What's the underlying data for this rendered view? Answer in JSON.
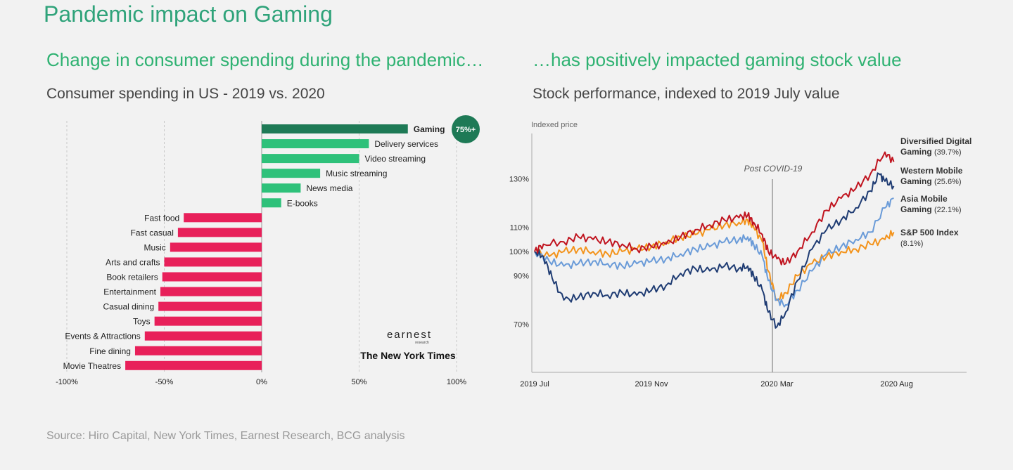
{
  "page": {
    "title": "Pandemic impact on Gaming",
    "left_heading": "Change in consumer spending during the pandemic…",
    "right_heading": "…has positively impacted gaming stock value",
    "source": "Source: Hiro Capital, New York Times, Earnest Research, BCG analysis"
  },
  "logos": {
    "earnest": "earnest",
    "earnest_sub": "research",
    "nyt": "The New York Times"
  },
  "colors": {
    "gaming": "#1e7a56",
    "positive": "#2ec17a",
    "negative": "#e8205a",
    "diversified": "#c0141f",
    "western": "#1f3c73",
    "asia": "#6a9bd8",
    "sp500": "#f3931b"
  },
  "chart_data": [
    {
      "type": "bar",
      "orientation": "horizontal",
      "title": "Consumer spending in US - 2019 vs. 2020",
      "categories": [
        "Gaming",
        "Delivery services",
        "Video streaming",
        "Music streaming",
        "News media",
        "E-books",
        "Fast food",
        "Fast casual",
        "Music",
        "Arts and crafts",
        "Book retailers",
        "Entertainment",
        "Casual dining",
        "Toys",
        "Events & Attractions",
        "Fine dining",
        "Movie Theatres"
      ],
      "values": [
        75,
        55,
        50,
        30,
        20,
        10,
        -40,
        -43,
        -47,
        -50,
        -51,
        -52,
        -53,
        -55,
        -60,
        -65,
        -70
      ],
      "badge": "75%+",
      "xlim": [
        -100,
        100
      ],
      "xticks": [
        -100,
        -50,
        0,
        50,
        100
      ],
      "xtick_labels": [
        "-100%",
        "-50%",
        "0%",
        "50%",
        "100%"
      ]
    },
    {
      "type": "line",
      "title": "Stock performance, indexed to 2019 July value",
      "ylabel": "Indexed price",
      "yticks": [
        70,
        90,
        100,
        110,
        130
      ],
      "ytick_labels": [
        "70%",
        "90%",
        "100%",
        "110%",
        "130%"
      ],
      "xtick_labels": [
        "2019 Jul",
        "2019 Nov",
        "2020 Mar",
        "2020 Aug"
      ],
      "annotation": "Post COVID-19",
      "series": [
        {
          "name": "Diversified Digital Gaming",
          "label_line1": "Diversified Digital",
          "label_line2": "Gaming",
          "change": "(39.7%)",
          "x": [
            0,
            0.3,
            1,
            1.5,
            2,
            2.5,
            3,
            3.5,
            4,
            4.5,
            5,
            5.5,
            6,
            6.5,
            7,
            7.3,
            7.5,
            7.8,
            8,
            8.3,
            8.6,
            9,
            9.5,
            10,
            10.5,
            11,
            11.5,
            12,
            12.3
          ],
          "values": [
            100,
            103,
            104,
            106,
            105,
            104,
            103,
            101,
            102,
            103,
            106,
            109,
            111,
            113,
            114,
            115,
            112,
            107,
            100,
            97,
            95,
            100,
            108,
            117,
            122,
            126,
            132,
            141,
            137
          ]
        },
        {
          "name": "Western Mobile Gaming",
          "label_line1": "Western Mobile",
          "label_line2": "Gaming",
          "change": "(25.6%)",
          "x": [
            0,
            0.3,
            0.6,
            1,
            1.5,
            2,
            2.5,
            3,
            3.5,
            4,
            4.5,
            5,
            5.5,
            6,
            6.5,
            7,
            7.3,
            7.5,
            7.8,
            8,
            8.3,
            8.6,
            9,
            9.5,
            10,
            10.5,
            11,
            11.5,
            11.8,
            12,
            12.3
          ],
          "values": [
            100,
            98,
            89,
            80,
            81,
            83,
            82,
            83,
            82,
            84,
            86,
            91,
            93,
            92,
            94,
            93,
            94,
            90,
            84,
            75,
            69,
            75,
            88,
            101,
            109,
            113,
            118,
            125,
            132,
            129,
            127
          ]
        },
        {
          "name": "Asia Mobile Gaming",
          "label_line1": "Asia Mobile",
          "label_line2": "Gaming",
          "change": "(22.1%)",
          "x": [
            0,
            0.5,
            1,
            1.5,
            2,
            2.5,
            3,
            3.5,
            4,
            4.5,
            5,
            5.5,
            6,
            6.5,
            7,
            7.3,
            7.5,
            7.8,
            8,
            8.3,
            8.6,
            9,
            9.5,
            10,
            10.5,
            11,
            11.5,
            12,
            12.3
          ],
          "values": [
            100,
            96,
            94,
            95,
            96,
            95,
            94,
            95,
            96,
            97,
            99,
            101,
            102,
            104,
            105,
            106,
            103,
            98,
            88,
            80,
            78,
            84,
            92,
            99,
            102,
            105,
            108,
            118,
            122
          ]
        },
        {
          "name": "S&P 500 Index",
          "label_line1": "S&P 500 Index",
          "label_line2": "",
          "change": "(8.1%)",
          "x": [
            0,
            0.5,
            1,
            1.5,
            2,
            2.5,
            3,
            3.5,
            4,
            4.5,
            5,
            5.5,
            6,
            6.5,
            7,
            7.3,
            7.5,
            7.8,
            8,
            8.3,
            8.6,
            9,
            9.5,
            10,
            10.5,
            11,
            11.5,
            12,
            12.3
          ],
          "values": [
            100,
            98,
            100,
            101,
            100,
            99,
            100,
            101,
            102,
            104,
            106,
            107,
            109,
            111,
            112,
            113,
            110,
            104,
            92,
            80,
            83,
            90,
            95,
            98,
            100,
            101,
            103,
            105,
            108
          ]
        }
      ]
    }
  ]
}
